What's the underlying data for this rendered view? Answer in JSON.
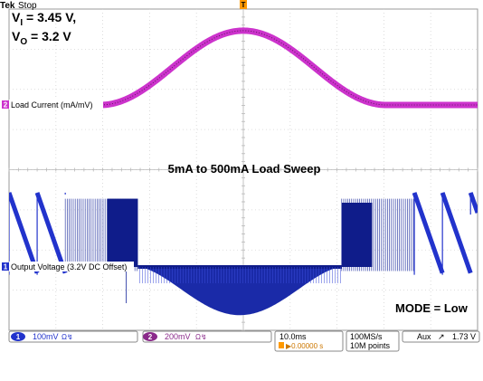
{
  "header": {
    "brand": "Tek",
    "state": "Stop"
  },
  "annotations": {
    "vi_main": "V",
    "vi_sub": "I",
    "vi_value": " = 3.45 V,",
    "vo_main": "V",
    "vo_sub": "O",
    "vo_value": " = 3.2 V",
    "sweep_title": "5mA to 500mA Load Sweep",
    "mode": "MODE = Low"
  },
  "channels": [
    {
      "marker": "2",
      "label": "Load Current (mA/mV)",
      "color": "#cc33cc"
    },
    {
      "marker": "1",
      "label": "Output Voltage (3.2V DC Offset)",
      "color": "#2233cc"
    }
  ],
  "trigger_marker": "T",
  "status_bar": {
    "ch1": {
      "num": "1",
      "scale": "100mV",
      "coupling": "Ω↯"
    },
    "ch2": {
      "num": "2",
      "scale": "200mV",
      "coupling": "Ω↯"
    },
    "timebase": "10.0ms",
    "delay": "▶0.00000 s",
    "sample_rate": "100MS/s",
    "record": "10M points",
    "trigger_source": "Aux",
    "trigger_slope": "↗",
    "trigger_level": "1.73 V"
  },
  "chart_data": {
    "type": "line",
    "grid": true,
    "divisions": {
      "x": 10,
      "y": 8
    },
    "series": [
      {
        "name": "Load Current (mA/mV)",
        "envelope": "raised-cosine",
        "baseline_div": 0.0,
        "peak_div": 1.85,
        "rise_start_div": -3.05,
        "peak_at_div": 0.0,
        "fall_end_div": 3.05
      },
      {
        "name": "Output Voltage (3.2V DC Offset)",
        "pfm_ramp_top_div": 1.85,
        "pfm_ramp_bottom_div": -0.15,
        "pfm_ramp_period_div": 0.6,
        "burst_top_div": 1.7,
        "burst_floor_div": 0.0,
        "burst_edges_div": [
          -3.8,
          -2.25,
          2.1,
          3.65
        ],
        "dip_min_div": -1.2
      }
    ]
  }
}
